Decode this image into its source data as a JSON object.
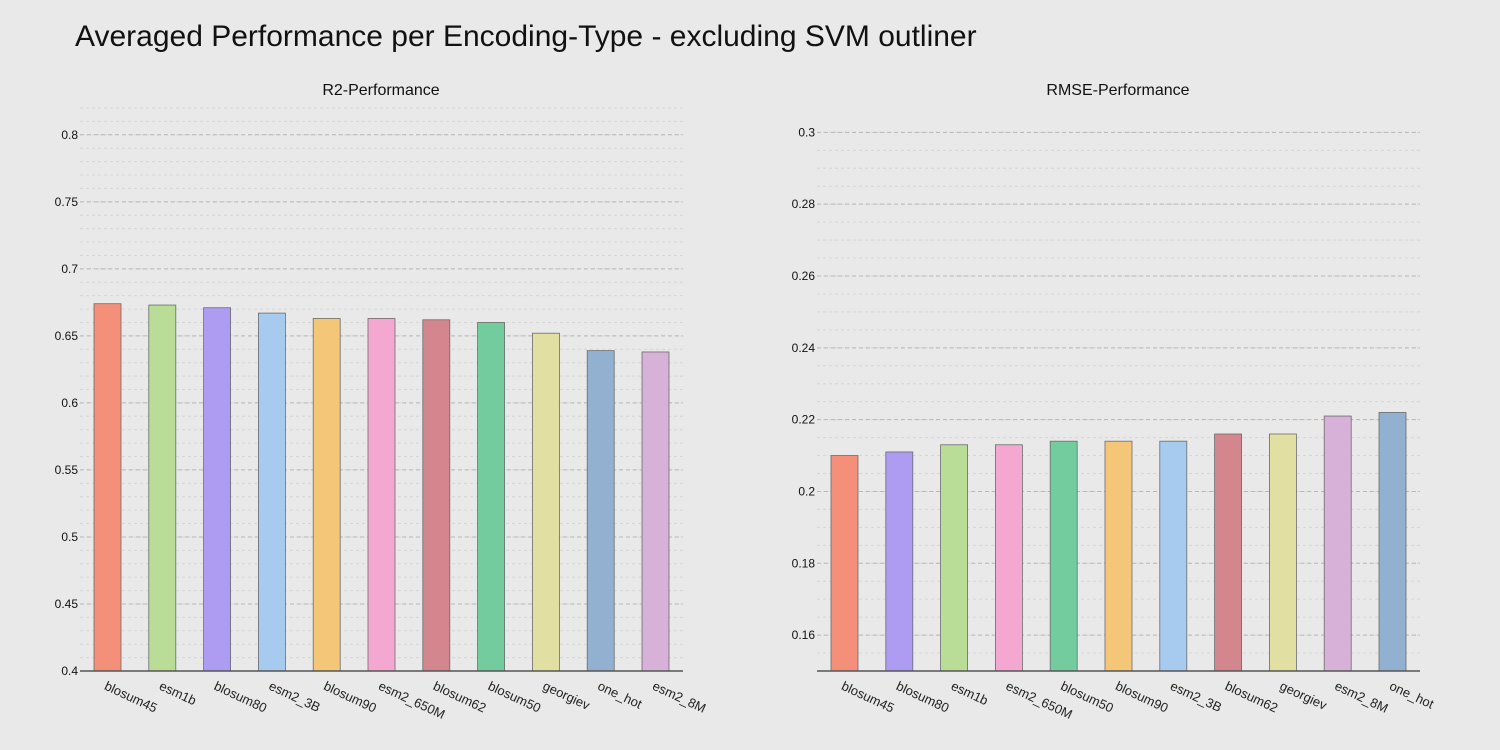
{
  "title": "Averaged Performance per Encoding-Type - excluding SVM outliner",
  "chart_data": [
    {
      "type": "bar",
      "title": "R2-Performance",
      "categories": [
        "blosum45",
        "esm1b",
        "blosum80",
        "esm2_3B",
        "blosum90",
        "esm2_650M",
        "blosum62",
        "blosum50",
        "georgiev",
        "one_hot",
        "esm2_8M"
      ],
      "values": [
        0.674,
        0.673,
        0.671,
        0.667,
        0.663,
        0.663,
        0.662,
        0.66,
        0.652,
        0.639,
        0.638
      ],
      "ylim": [
        0.4,
        0.82
      ],
      "yticks": [
        0.4,
        0.45,
        0.5,
        0.55,
        0.6,
        0.65,
        0.7,
        0.75,
        0.8
      ],
      "ytick_labels": [
        "0.4",
        "0.45",
        "0.5",
        "0.55",
        "0.6",
        "0.65",
        "0.7",
        "0.75",
        "0.8"
      ],
      "minor_grid_step": 0.01,
      "grid": true,
      "colors": [
        "#f4907a",
        "#b9dc96",
        "#ad9cf2",
        "#a6cbee",
        "#f4c677",
        "#f4a8d1",
        "#d4868f",
        "#72cc9d",
        "#e1e0a2",
        "#92b1d0",
        "#d7b1d8"
      ]
    },
    {
      "type": "bar",
      "title": "RMSE-Performance",
      "categories": [
        "blosum45",
        "blosum80",
        "esm1b",
        "esm2_650M",
        "blosum50",
        "blosum90",
        "esm2_3B",
        "blosum62",
        "georgiev",
        "esm2_8M",
        "one_hot"
      ],
      "values": [
        0.21,
        0.211,
        0.213,
        0.213,
        0.214,
        0.214,
        0.214,
        0.216,
        0.216,
        0.221,
        0.222
      ],
      "ylim": [
        0.15,
        0.304
      ],
      "yticks": [
        0.16,
        0.18,
        0.2,
        0.22,
        0.24,
        0.26,
        0.28,
        0.3
      ],
      "ytick_labels": [
        "0.16",
        "0.18",
        "0.2",
        "0.22",
        "0.24",
        "0.26",
        "0.28",
        "0.3"
      ],
      "minor_grid_step": 0.005,
      "grid": true,
      "colors": [
        "#f4907a",
        "#ad9cf2",
        "#b9dc96",
        "#f4a8d1",
        "#72cc9d",
        "#f4c677",
        "#a6cbee",
        "#d4868f",
        "#e1e0a2",
        "#d7b1d8",
        "#92b1d0"
      ]
    }
  ]
}
